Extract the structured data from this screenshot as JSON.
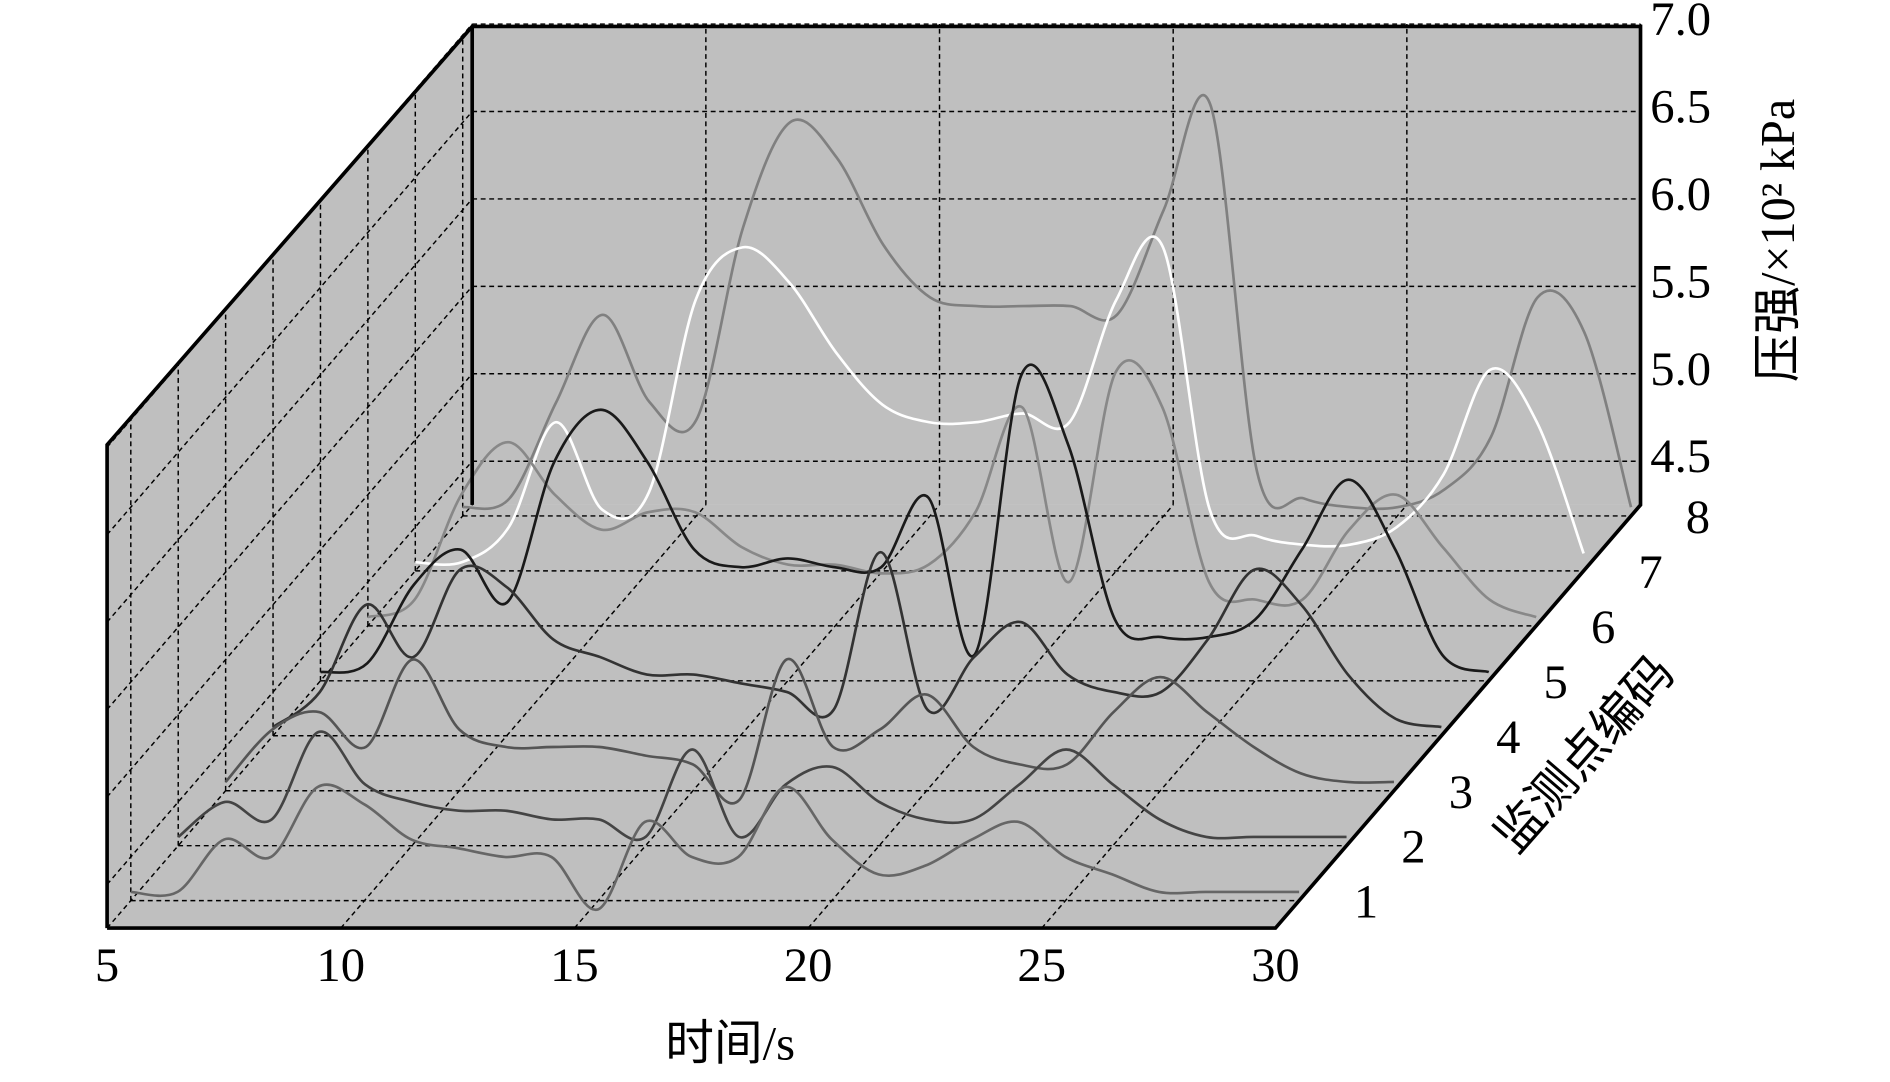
{
  "chart_data": {
    "type": "waterfall3d",
    "x_label": "时间/s",
    "y_label": "压强/×10² kPa",
    "z_label": "监测点编码",
    "x": [
      5,
      6,
      7,
      8,
      9,
      10,
      11,
      12,
      13,
      14,
      15,
      16,
      17,
      18,
      19,
      20,
      21,
      22,
      23,
      24,
      25,
      26,
      27,
      28,
      29,
      30
    ],
    "xlim": [
      5,
      30
    ],
    "xticks": [
      5,
      10,
      15,
      20,
      25,
      30
    ],
    "ylim": [
      4.25,
      7.0
    ],
    "yticks": [
      {
        "value": 4.5,
        "label": "4.5"
      },
      {
        "value": 5,
        "label": "5.0"
      },
      {
        "value": 5.5,
        "label": "5.5"
      },
      {
        "value": 6,
        "label": "6.0"
      },
      {
        "value": 6.5,
        "label": "6.5"
      },
      {
        "value": 7,
        "label": "7.0"
      }
    ],
    "zlim": [
      0.5,
      8.2
    ],
    "zticks": [
      1,
      2,
      3,
      4,
      5,
      6,
      7,
      8
    ],
    "grid": true,
    "series": [
      {
        "z": 1,
        "color": "#666666",
        "values": [
          4.3,
          4.3,
          4.6,
          4.5,
          4.9,
          4.8,
          4.6,
          4.55,
          4.5,
          4.5,
          4.2,
          4.7,
          4.5,
          4.5,
          4.9,
          4.6,
          4.4,
          4.45,
          4.6,
          4.7,
          4.5,
          4.4,
          4.3,
          4.3,
          4.3,
          4.3
        ]
      },
      {
        "z": 2,
        "color": "#444444",
        "values": [
          4.3,
          4.5,
          4.4,
          4.9,
          4.6,
          4.5,
          4.45,
          4.45,
          4.4,
          4.4,
          4.3,
          4.8,
          4.3,
          4.6,
          4.7,
          4.5,
          4.4,
          4.4,
          4.6,
          4.8,
          4.6,
          4.4,
          4.3,
          4.3,
          4.3,
          4.3
        ]
      },
      {
        "z": 3,
        "color": "#555555",
        "values": [
          4.3,
          4.6,
          4.7,
          4.5,
          5.0,
          4.6,
          4.5,
          4.5,
          4.5,
          4.45,
          4.4,
          4.2,
          5.0,
          4.5,
          4.6,
          4.8,
          4.5,
          4.4,
          4.4,
          4.7,
          4.9,
          4.7,
          4.5,
          4.35,
          4.3,
          4.3
        ]
      },
      {
        "z": 4,
        "color": "#333333",
        "values": [
          4.3,
          4.5,
          5.0,
          4.7,
          5.2,
          5.1,
          4.8,
          4.7,
          4.6,
          4.6,
          4.55,
          4.5,
          4.4,
          5.3,
          4.4,
          4.7,
          4.9,
          4.6,
          4.5,
          4.5,
          4.8,
          5.2,
          5.0,
          4.6,
          4.35,
          4.3
        ]
      },
      {
        "z": 5,
        "color": "#1a1a1a",
        "values": [
          4.3,
          4.35,
          4.8,
          5.0,
          4.7,
          5.5,
          5.8,
          5.5,
          5.0,
          4.9,
          4.95,
          4.9,
          4.9,
          5.3,
          4.4,
          6.0,
          5.6,
          4.6,
          4.5,
          4.5,
          4.6,
          5.0,
          5.4,
          5.0,
          4.4,
          4.3
        ]
      },
      {
        "z": 6,
        "color": "#888888",
        "values": [
          4.3,
          4.4,
          5.0,
          5.3,
          5.0,
          4.8,
          4.9,
          4.9,
          4.7,
          4.6,
          4.6,
          4.55,
          4.6,
          4.9,
          5.5,
          4.5,
          5.7,
          5.5,
          4.5,
          4.4,
          4.4,
          4.8,
          5.0,
          4.7,
          4.4,
          4.3
        ]
      },
      {
        "z": 7,
        "color": "#ffffff",
        "values": [
          4.3,
          4.3,
          4.5,
          5.1,
          4.6,
          4.7,
          5.8,
          6.1,
          5.9,
          5.5,
          5.2,
          5.1,
          5.1,
          5.15,
          5.1,
          5.8,
          6.1,
          4.6,
          4.45,
          4.4,
          4.4,
          4.5,
          4.8,
          5.4,
          5.1,
          4.35
        ]
      },
      {
        "z": 8,
        "color": "#808080",
        "values": [
          4.3,
          4.35,
          4.9,
          5.4,
          4.9,
          4.8,
          5.9,
          6.5,
          6.3,
          5.8,
          5.5,
          5.45,
          5.45,
          5.45,
          5.4,
          6.0,
          6.6,
          4.5,
          4.35,
          4.3,
          4.3,
          4.4,
          4.7,
          5.5,
          5.3,
          4.3
        ]
      }
    ]
  }
}
